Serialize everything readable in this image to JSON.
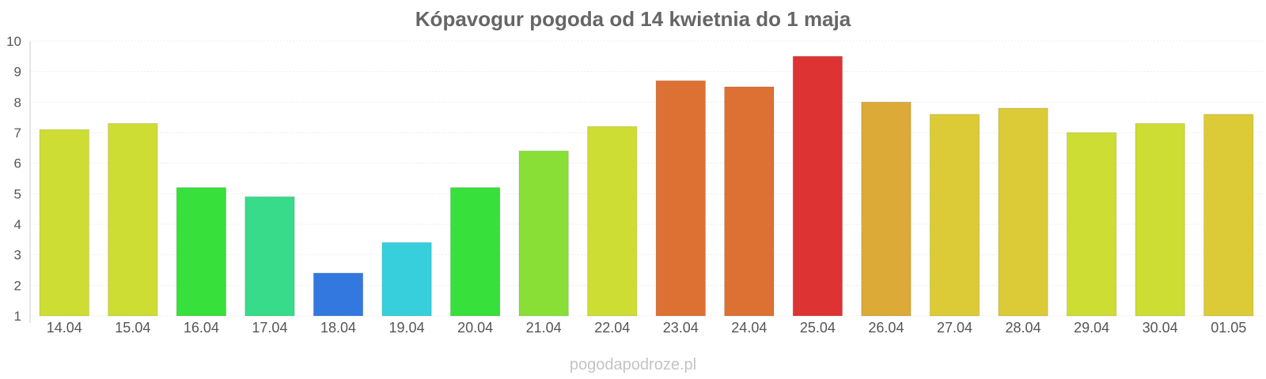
{
  "chart_data": {
    "type": "bar",
    "title": "Kópavogur pogoda od 14 kwietnia do 1 maja",
    "xlabel": "",
    "ylabel": "",
    "ylim": [
      1,
      10
    ],
    "yticks": [
      1,
      2,
      3,
      4,
      5,
      6,
      7,
      8,
      9,
      10
    ],
    "grid": true,
    "categories": [
      "14.04",
      "15.04",
      "16.04",
      "17.04",
      "18.04",
      "19.04",
      "20.04",
      "21.04",
      "22.04",
      "23.04",
      "24.04",
      "25.04",
      "26.04",
      "27.04",
      "28.04",
      "29.04",
      "30.04",
      "01.05"
    ],
    "values": [
      7.1,
      7.3,
      5.2,
      4.9,
      2.4,
      3.4,
      5.2,
      6.4,
      7.2,
      8.7,
      8.5,
      9.5,
      8.0,
      7.6,
      7.8,
      7.0,
      7.3,
      7.6
    ],
    "colors": [
      "#cedd33",
      "#cedd33",
      "#37e03a",
      "#37db8a",
      "#3378de",
      "#37cfdb",
      "#37e03a",
      "#8adf37",
      "#cedd33",
      "#dd7033",
      "#dd7033",
      "#dd3333",
      "#dcaa37",
      "#dcca37",
      "#dcca37",
      "#cedd33",
      "#cedd33",
      "#dcca37"
    ]
  },
  "watermark": "pogodapodroze.pl"
}
